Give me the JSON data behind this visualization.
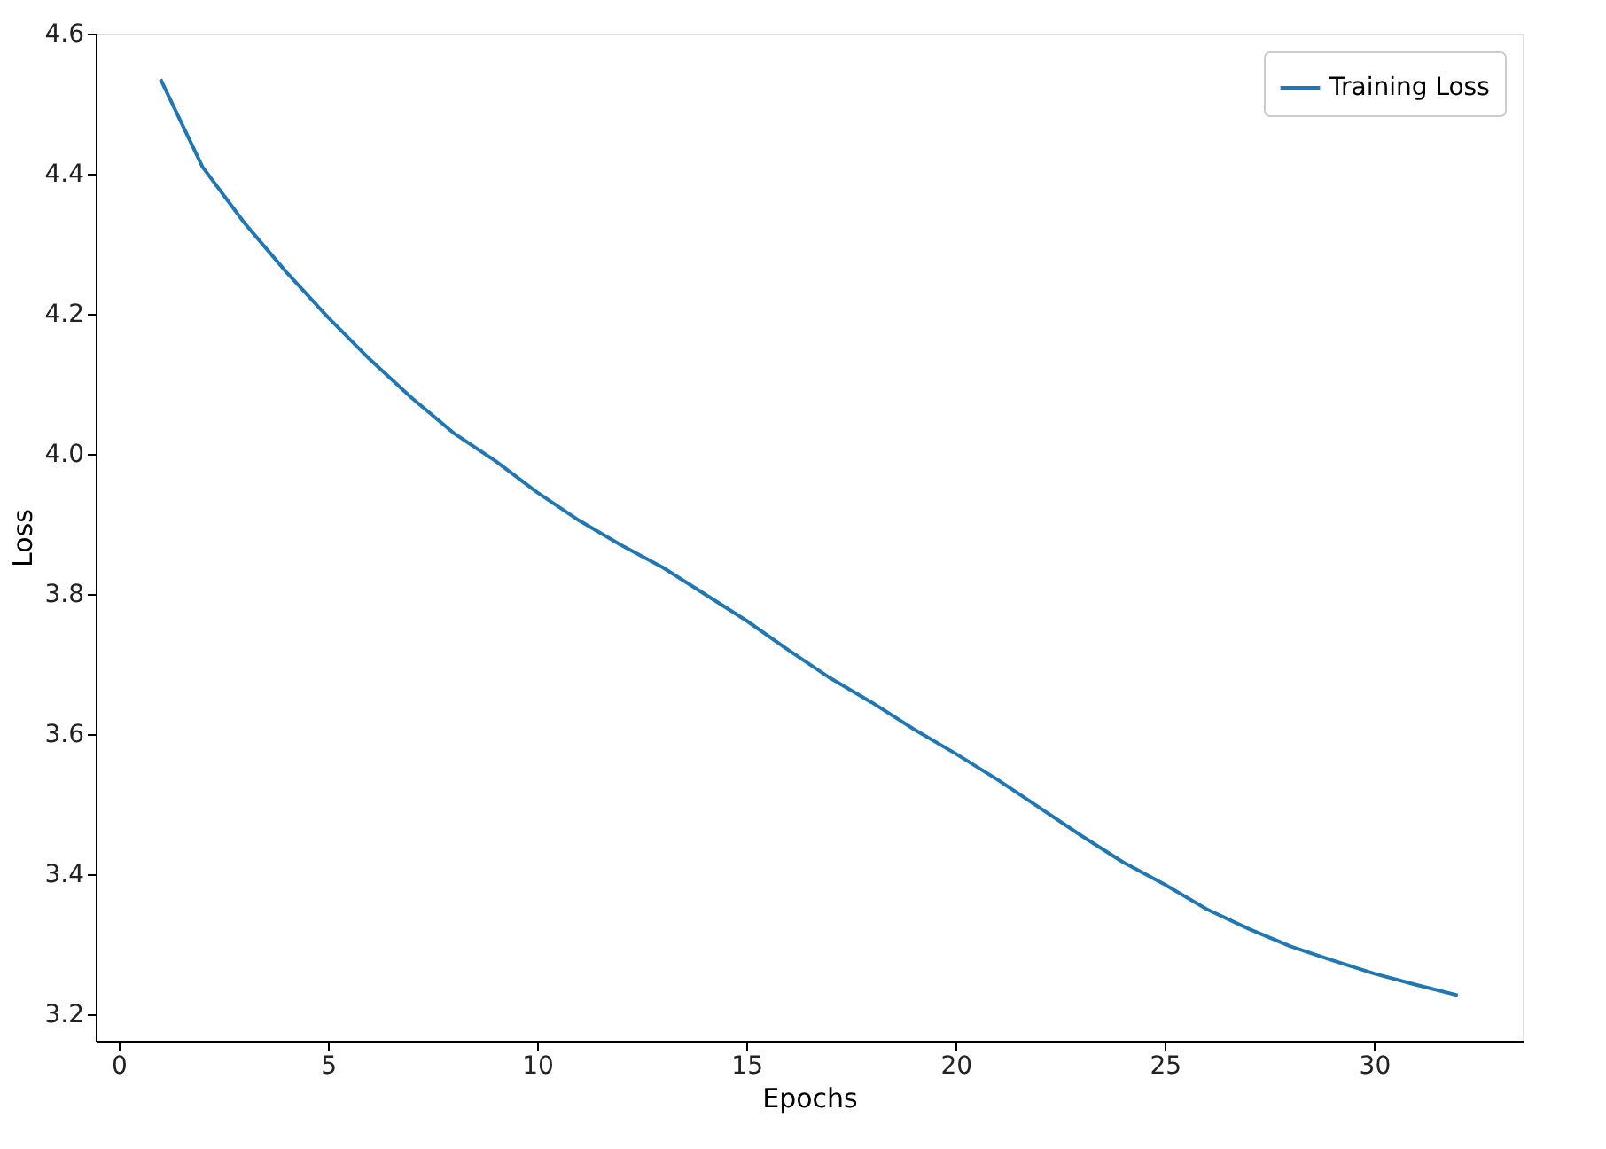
{
  "chart_data": {
    "type": "line",
    "xlabel": "Epochs",
    "ylabel": "Loss",
    "x": [
      1,
      2,
      3,
      4,
      5,
      6,
      7,
      8,
      9,
      10,
      11,
      12,
      13,
      14,
      15,
      16,
      17,
      18,
      19,
      20,
      21,
      22,
      23,
      24,
      25,
      26,
      27,
      28,
      29,
      30,
      31,
      32
    ],
    "series": [
      {
        "name": "Training Loss",
        "color": "#1f77b4",
        "values": [
          4.535,
          4.41,
          4.33,
          4.26,
          4.195,
          4.135,
          4.08,
          4.03,
          3.99,
          3.945,
          3.905,
          3.87,
          3.838,
          3.8,
          3.762,
          3.72,
          3.68,
          3.645,
          3.607,
          3.572,
          3.535,
          3.495,
          3.455,
          3.417,
          3.385,
          3.35,
          3.322,
          3.297,
          3.277,
          3.258,
          3.242,
          3.227
        ]
      }
    ],
    "xlim": [
      -0.55,
      33.55
    ],
    "xticks": [
      0,
      5,
      10,
      15,
      20,
      25,
      30
    ],
    "ylim": [
      3.162,
      4.6
    ],
    "yticks": [
      3.2,
      3.4,
      3.6,
      3.8,
      {
        "value": 4.0,
        "label": "4.0"
      },
      4.2,
      4.4,
      4.6
    ],
    "grid": false,
    "legend": "top right",
    "marker": "none",
    "line_style": "solid"
  }
}
